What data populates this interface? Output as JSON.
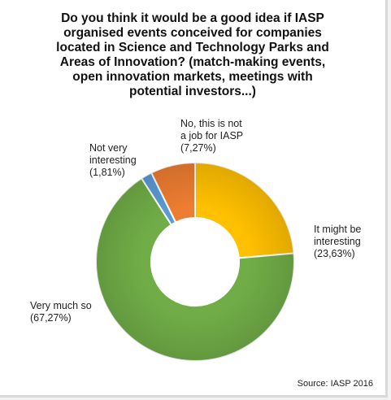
{
  "chart_data": {
    "type": "pie",
    "variant": "donut",
    "title": "Do you think it would be a good idea if IASP\norganised events conceived for companies\nlocated in Science and Technology Parks and\nAreas of Innovation? (match-making events,\nopen innovation markets, meetings with\npotential investors...)",
    "slices": [
      {
        "label": "It might be\ninteresting\n(23,63%)",
        "value": 23.63,
        "color": "#ffc000"
      },
      {
        "label": "Very much so\n(67,27%)",
        "value": 67.27,
        "color": "#70ad47"
      },
      {
        "label": "Not very\ninteresting\n(1,81%)",
        "value": 1.81,
        "color": "#5b9bd5"
      },
      {
        "label": "No, this is not\na job for IASP\n(7,27%)",
        "value": 7.27,
        "color": "#ed7d31"
      }
    ],
    "legend": "none",
    "source": "Source: IASP 2016"
  }
}
